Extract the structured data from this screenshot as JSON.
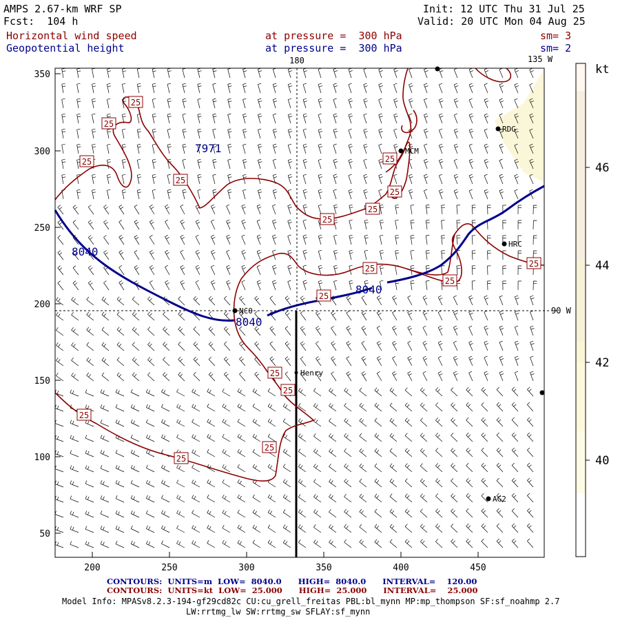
{
  "header": {
    "model_title": "AMPS 2.67-km WRF SP",
    "forecast": "Fcst:  104 h",
    "init": "Init: 12 UTC Thu 31 Jul 25",
    "valid": "Valid: 20 UTC Mon 04 Aug 25",
    "field1_name": "Horizontal wind speed",
    "field1_level": "at pressure =  300 hPa",
    "field1_smooth": "sm= 3",
    "field2_name": "Geopotential height",
    "field2_level": "at pressure =  300 hPa",
    "field2_smooth": "sm= 2"
  },
  "map": {
    "meridian_labels": [
      "180",
      "135 W",
      "90 W"
    ],
    "x_ticks": [
      "200",
      "250",
      "300",
      "350",
      "400",
      "450"
    ],
    "y_ticks": [
      "350",
      "300",
      "250",
      "200",
      "150",
      "100",
      "50"
    ],
    "height_contour_labels": [
      "8040",
      "8040",
      "8040"
    ],
    "low_label": "7971",
    "wind_contour_label": "25",
    "stations": [
      "RDG",
      "MCM",
      "HRC",
      "NCO",
      "Henry",
      "AG2"
    ],
    "colors": {
      "wind_contour": "#8b0000",
      "height_contour": "#00008b",
      "barb": "#000000"
    }
  },
  "colorbar": {
    "unit": "kt",
    "ticks": [
      "46",
      "44",
      "42",
      "40"
    ],
    "colors": [
      "#fff7f0",
      "#f7eee0",
      "#f6f2d8",
      "#f9f5d6",
      "#fbf8dc",
      "#fdfbe6",
      "#ffffff"
    ]
  },
  "footer": {
    "contours1": "CONTOURS:  UNITS=m  LOW=  8040.0      HIGH=  8040.0      INTERVAL=    120.00",
    "contours2": "CONTOURS:  UNITS=kt  LOW=  25.000      HIGH=  25.000      INTERVAL=    25.000",
    "model_info": "Model Info: MPASv8.2.3-194-gf29cd82c CU:cu_grell_freitas PBL:bl_mynn MP:mp_thompson SF:sf_noahmp 2.7",
    "model_info2": "LW:rrtmg_lw SW:rrtmg_sw SFLAY:sf_mynn"
  }
}
